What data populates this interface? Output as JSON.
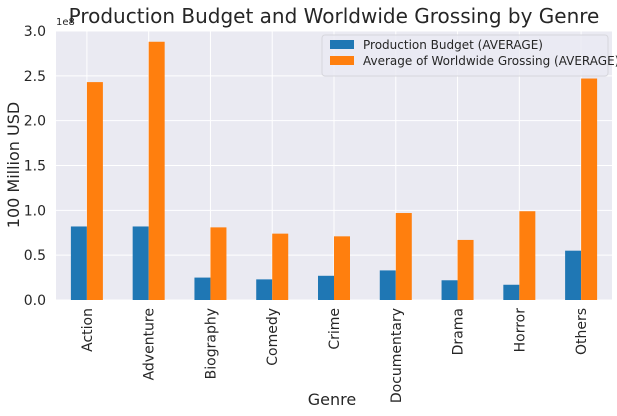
{
  "chart_data": {
    "type": "bar",
    "title": "Production Budget and Worldwide Grossing by Genre",
    "xlabel": "Genre",
    "ylabel": "100 Million USD",
    "y_exponent_label": "1e8",
    "categories": [
      "Action",
      "Adventure",
      "Biography",
      "Comedy",
      "Crime",
      "Documentary",
      "Drama",
      "Horror",
      "Others"
    ],
    "series": [
      {
        "name": "Production Budget (AVERAGE)",
        "color": "#1f77b4",
        "values": [
          0.82,
          0.82,
          0.25,
          0.23,
          0.27,
          0.33,
          0.22,
          0.17,
          0.55
        ]
      },
      {
        "name": "Average of Worldwide Grossing (AVERAGE)",
        "color": "#ff7f0e",
        "values": [
          2.43,
          2.88,
          0.81,
          0.74,
          0.71,
          0.97,
          0.67,
          0.99,
          2.47
        ]
      }
    ],
    "ylim": [
      0,
      3.0
    ],
    "yticks": [
      "0.0",
      "0.5",
      "1.0",
      "1.5",
      "2.0",
      "2.5",
      "3.0"
    ],
    "grid": true,
    "legend_position": "upper right",
    "background": "#eaeaf2"
  }
}
